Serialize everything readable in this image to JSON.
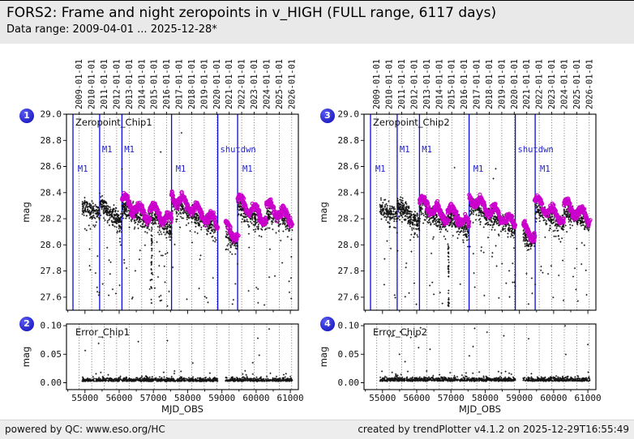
{
  "header": {
    "title": "FORS2: Frame and night zeropoints in v_HIGH (FULL range, 6117 days)",
    "subtitle": "Data range: 2009-04-01 ... 2025-12-28*"
  },
  "footer": {
    "left": "powered by QC: www.eso.org/HC",
    "right": "created by trendPlotter v4.1.2 on 2025-12-29T16:55:49"
  },
  "colors": {
    "badge_blue": "#1515c0",
    "event_line_blue": "#0a0ae0",
    "annotation_blue": "#2323cf",
    "night_zeropoint_magenta": "#cc00cc",
    "frame_zeropoint_black": "#141414",
    "header_bg": "#e9e9e9",
    "footer_bg": "#ededed",
    "panel_bg": "#ffffff"
  },
  "chart_data": {
    "shared": {
      "type": "scatter",
      "x_axis": {
        "label": "MJD_OBS",
        "domain": [
          54460,
          61235
        ],
        "major_ticks": [
          55000,
          56000,
          57000,
          58000,
          59000,
          60000,
          61000
        ],
        "tick_labels": [
          "55000",
          "56000",
          "57000",
          "58000",
          "59000",
          "60000",
          "61000"
        ],
        "minor_tick_step": 500
      },
      "top_axis": {
        "year_dates": [
          "2009-01-01",
          "2010-01-01",
          "2011-01-01",
          "2012-01-01",
          "2013-01-01",
          "2014-01-01",
          "2015-01-01",
          "2016-01-01",
          "2017-01-01",
          "2018-01-01",
          "2019-01-01",
          "2020-01-01",
          "2021-01-01",
          "2022-01-01",
          "2023-01-01",
          "2024-01-01",
          "2025-01-01",
          "2026-01-01"
        ],
        "year_mjd": [
          54832,
          55197,
          55562,
          55927,
          56293,
          56658,
          57023,
          57388,
          57754,
          58119,
          58484,
          58849,
          59215,
          59580,
          59945,
          60310,
          60676,
          61041
        ]
      },
      "ylabel": "mag",
      "grid": "dotted-vertical-years",
      "legend": "none"
    },
    "panels": [
      {
        "slot": "tl",
        "badge": "1",
        "title": "Zeropoint_Chip1",
        "ylim": [
          27.5,
          29.0
        ],
        "yticks": [
          "29.0",
          "28.8",
          "28.6",
          "28.4",
          "28.2",
          "28.0",
          "27.8",
          "27.6"
        ],
        "ytick_vals": [
          29.0,
          28.8,
          28.6,
          28.4,
          28.2,
          28.0,
          27.8,
          27.6
        ],
        "event_lines_mjd": [
          54650,
          55430,
          56080,
          57530,
          58880,
          59460
        ],
        "annotations": [
          {
            "text": "M1",
            "mjd": 54790,
            "mag": 28.56
          },
          {
            "text": "M1",
            "mjd": 55500,
            "mag": 28.71
          },
          {
            "text": "M1",
            "mjd": 56150,
            "mag": 28.71
          },
          {
            "text": "M1",
            "mjd": 57650,
            "mag": 28.56
          },
          {
            "text": "shutdwn",
            "mjd": 58950,
            "mag": 28.71
          },
          {
            "text": "M1",
            "mjd": 59600,
            "mag": 28.56
          }
        ],
        "gap": [
          58880,
          59110
        ],
        "streaks": [
          {
            "mjd": 56950,
            "n": 34,
            "ymin": 27.53,
            "ymax": 28.08
          }
        ],
        "seed": 11,
        "series": [
          {
            "name": "frame_zeropoints",
            "marker": "plus",
            "color": "#141414",
            "segments": [
              {
                "x0": 54922,
                "x1": 55430,
                "y0": 28.31,
                "y1": 28.24,
                "n": 150
              },
              {
                "x0": 55430,
                "x1": 56080,
                "y0": 28.33,
                "y1": 28.17,
                "n": 250
              },
              {
                "x0": 56080,
                "x1": 56900,
                "y0": 28.3,
                "y1": 28.17,
                "n": 250
              },
              {
                "x0": 56900,
                "x1": 57530,
                "y0": 28.24,
                "y1": 28.12,
                "n": 200
              },
              {
                "x0": 57530,
                "x1": 58880,
                "y0": 28.33,
                "y1": 28.12,
                "n": 340
              },
              {
                "x0": 59110,
                "x1": 59460,
                "y0": 28.09,
                "y1": 28.02,
                "n": 110
              },
              {
                "x0": 59460,
                "x1": 60300,
                "y0": 28.3,
                "y1": 28.15,
                "n": 210
              },
              {
                "x0": 60300,
                "x1": 61060,
                "y0": 28.25,
                "y1": 28.16,
                "n": 190
              }
            ]
          },
          {
            "name": "night_zeropoints",
            "marker": "circle",
            "color": "#cc00cc",
            "x0": 56085,
            "x1": 61050,
            "step": 8,
            "offset": 0.045,
            "wiggle_amp": 0.042,
            "wiggle_period": 67,
            "noise": 0.013
          }
        ]
      },
      {
        "slot": "bl",
        "badge": "2",
        "title": "Error_Chip1",
        "ylim": [
          -0.012,
          0.103
        ],
        "yticks": [
          "0.10",
          "0.05",
          "0.00"
        ],
        "ytick_vals": [
          0.1,
          0.05,
          0.0
        ],
        "gap": [
          58880,
          59110
        ],
        "seed": 31,
        "series": [
          {
            "name": "frame_zeropoint_errors",
            "marker": "plus",
            "color": "#141414",
            "x0": 54922,
            "x1": 61055,
            "n": 1150,
            "base": 0.0025,
            "spread": 0.003,
            "outlier_prob": 0.012,
            "outlier_max": 0.09
          }
        ]
      },
      {
        "slot": "tr",
        "badge": "3",
        "title": "Zeropoint_Chip2",
        "ylim": [
          27.5,
          29.0
        ],
        "yticks": [
          "29.0",
          "28.8",
          "28.6",
          "28.4",
          "28.2",
          "28.0",
          "27.8",
          "27.6"
        ],
        "ytick_vals": [
          29.0,
          28.8,
          28.6,
          28.4,
          28.2,
          28.0,
          27.8,
          27.6
        ],
        "event_lines_mjd": [
          54650,
          55430,
          56080,
          57530,
          58880,
          59460
        ],
        "annotations": [
          {
            "text": "M1",
            "mjd": 54790,
            "mag": 28.56
          },
          {
            "text": "M1",
            "mjd": 55500,
            "mag": 28.71
          },
          {
            "text": "M1",
            "mjd": 56150,
            "mag": 28.71
          },
          {
            "text": "M1",
            "mjd": 57650,
            "mag": 28.56
          },
          {
            "text": "shutdwn",
            "mjd": 58950,
            "mag": 28.71
          },
          {
            "text": "M1",
            "mjd": 59600,
            "mag": 28.56
          }
        ],
        "gap": [
          58880,
          59110
        ],
        "streaks": [
          {
            "mjd": 56930,
            "n": 42,
            "ymin": 27.45,
            "ymax": 28.02
          }
        ],
        "seed": 23,
        "series": [
          {
            "name": "frame_zeropoints",
            "marker": "plus",
            "color": "#141414",
            "segments": [
              {
                "x0": 54922,
                "x1": 55430,
                "y0": 28.29,
                "y1": 28.22,
                "n": 150
              },
              {
                "x0": 55430,
                "x1": 56080,
                "y0": 28.32,
                "y1": 28.17,
                "n": 250
              },
              {
                "x0": 56080,
                "x1": 56900,
                "y0": 28.29,
                "y1": 28.16,
                "n": 250
              },
              {
                "x0": 56900,
                "x1": 57530,
                "y0": 28.23,
                "y1": 28.11,
                "n": 200
              },
              {
                "x0": 57530,
                "x1": 58880,
                "y0": 28.32,
                "y1": 28.11,
                "n": 340
              },
              {
                "x0": 59110,
                "x1": 59460,
                "y0": 28.08,
                "y1": 28.03,
                "n": 110
              },
              {
                "x0": 59460,
                "x1": 60300,
                "y0": 28.29,
                "y1": 28.15,
                "n": 210
              },
              {
                "x0": 60300,
                "x1": 61060,
                "y0": 28.26,
                "y1": 28.16,
                "n": 190
              }
            ]
          },
          {
            "name": "night_zeropoints",
            "marker": "circle",
            "color": "#cc00cc",
            "x0": 56085,
            "x1": 61050,
            "step": 8,
            "offset": 0.045,
            "wiggle_amp": 0.042,
            "wiggle_period": 67,
            "noise": 0.013
          }
        ]
      },
      {
        "slot": "br",
        "badge": "4",
        "title": "Error_Chip2",
        "ylim": [
          -0.012,
          0.103
        ],
        "yticks": [
          "0.10",
          "0.05",
          "0.00"
        ],
        "ytick_vals": [
          0.1,
          0.05,
          0.0
        ],
        "gap": [
          58880,
          59110
        ],
        "seed": 47,
        "series": [
          {
            "name": "frame_zeropoint_errors",
            "marker": "plus",
            "color": "#141414",
            "x0": 54922,
            "x1": 61055,
            "n": 1150,
            "base": 0.0028,
            "spread": 0.0032,
            "outlier_prob": 0.016,
            "outlier_max": 0.095
          }
        ]
      }
    ]
  }
}
